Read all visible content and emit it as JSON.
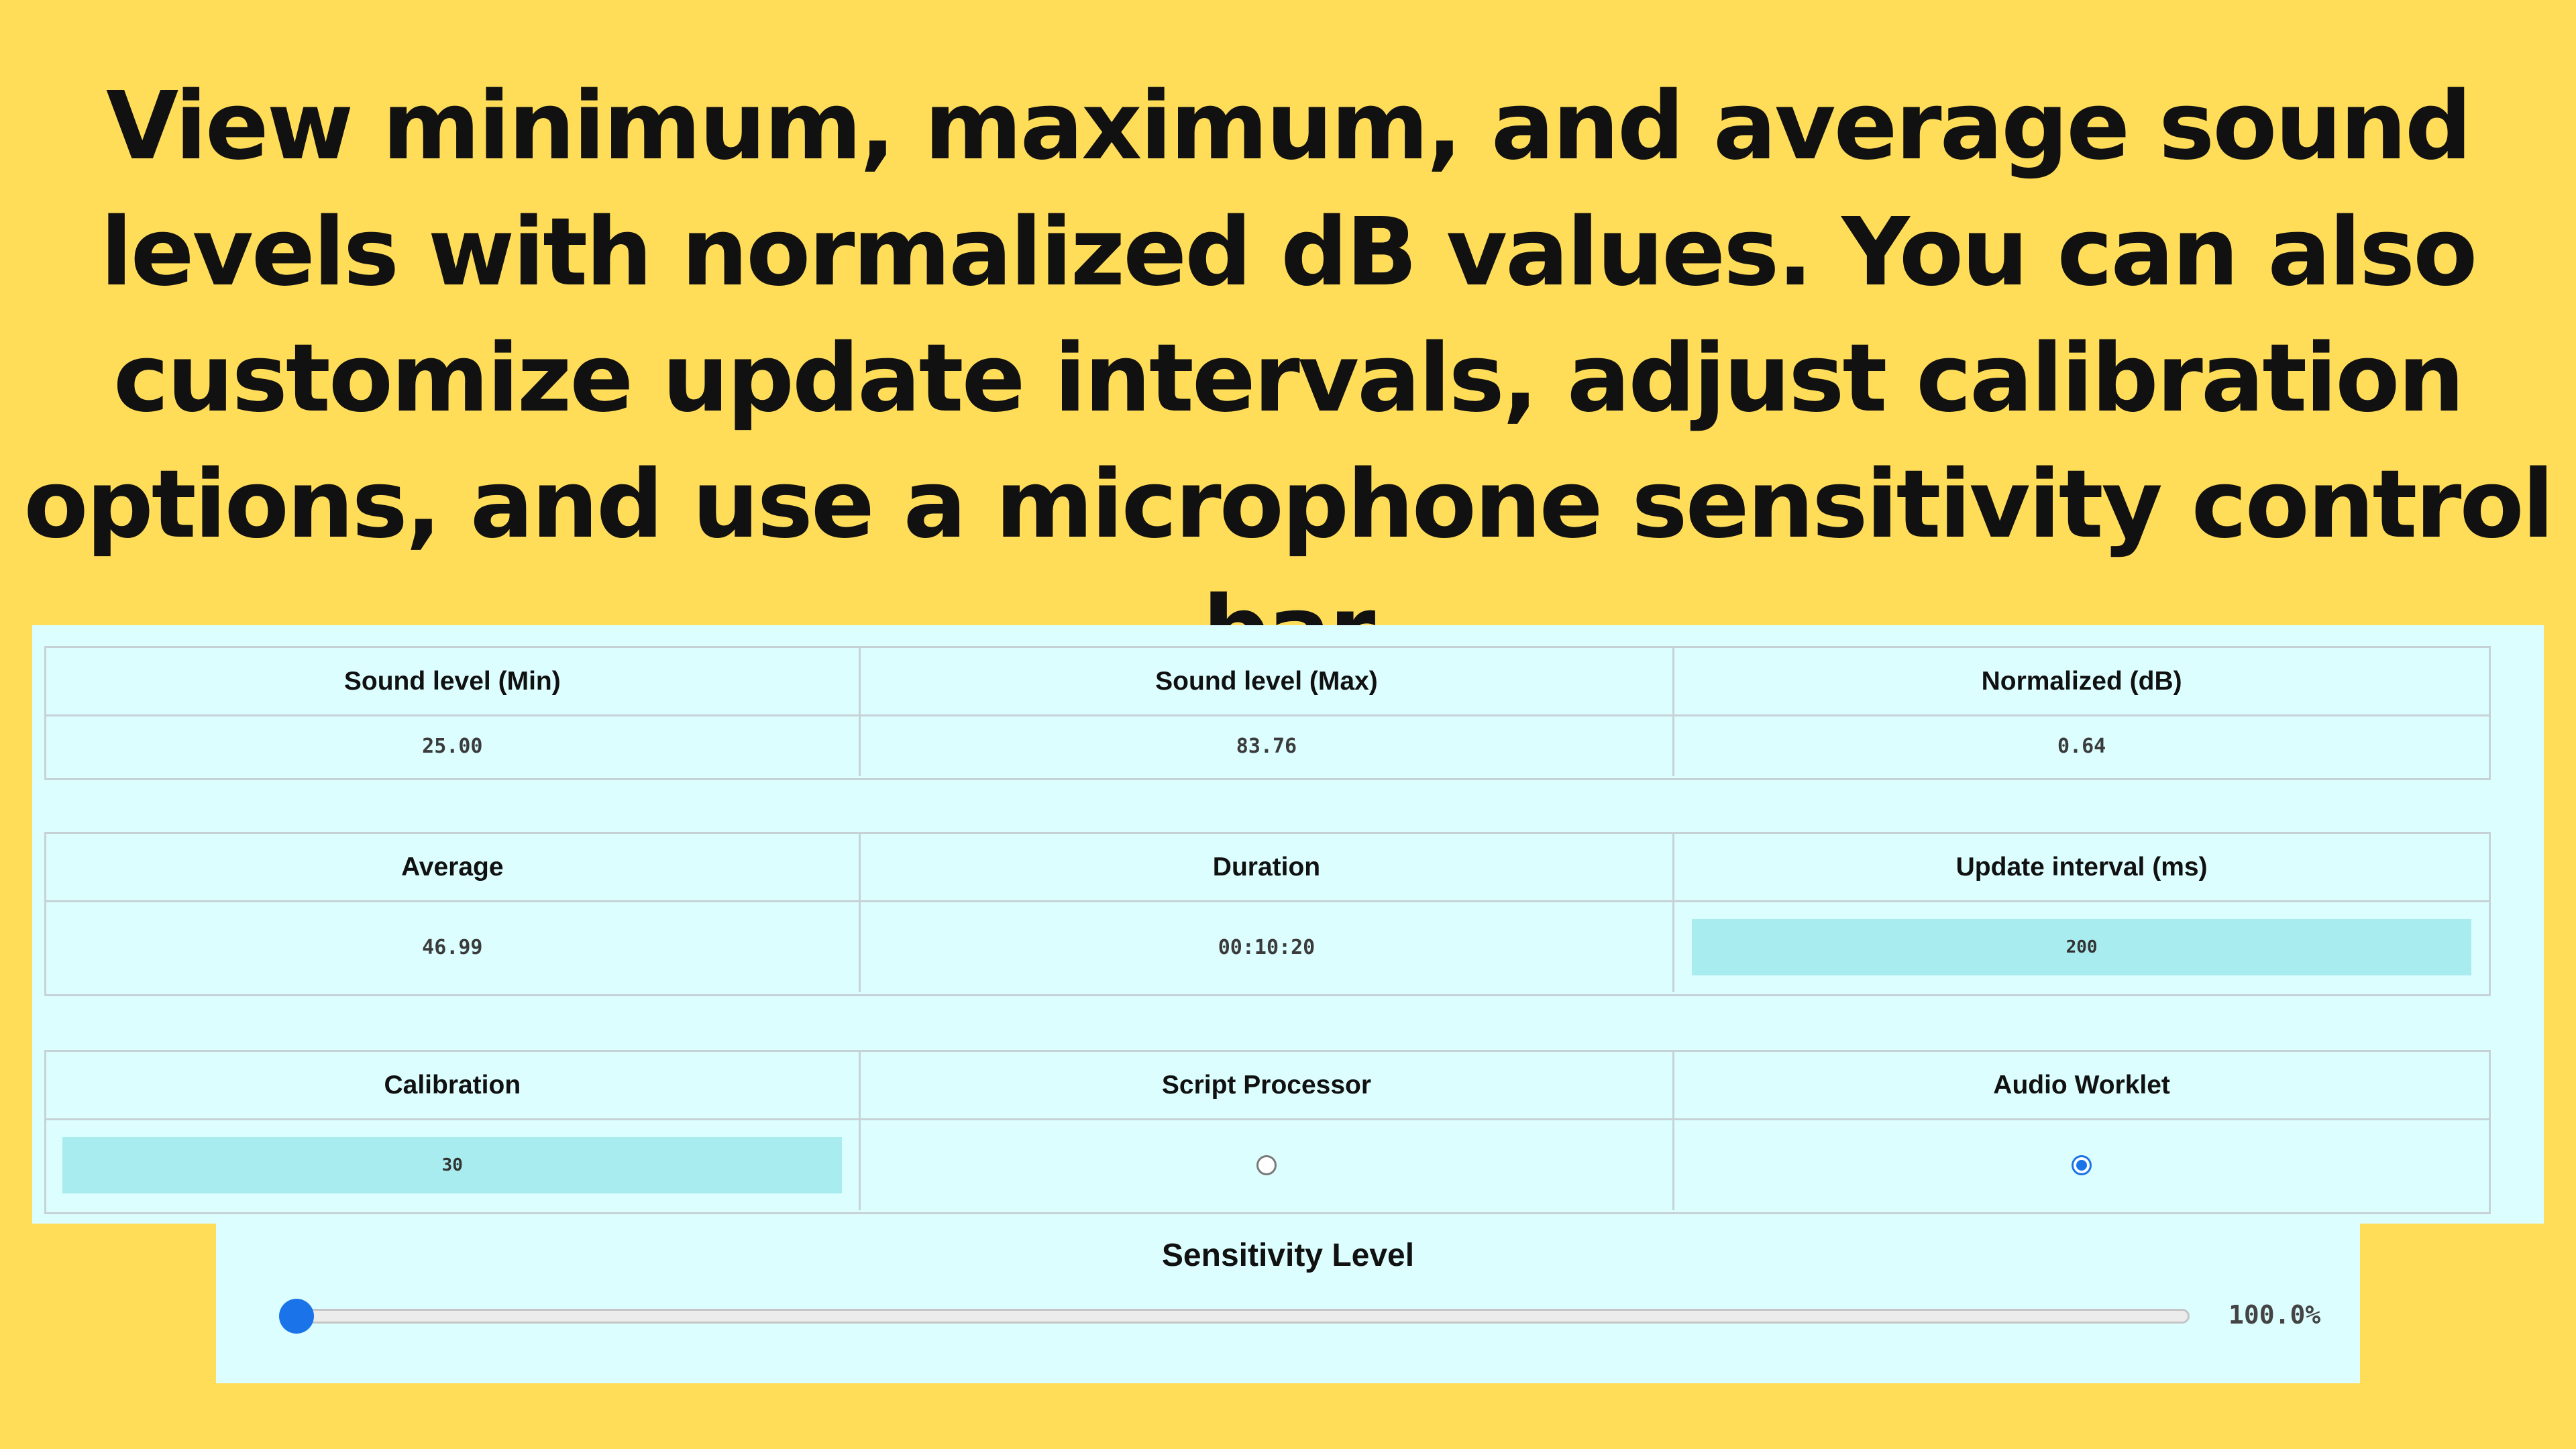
{
  "headline": {
    "lines": [
      "View minimum, maximum, and average sound",
      "levels with normalized dB values. You can also",
      "customize update intervals, adjust calibration",
      "options, and use a microphone sensitivity control bar"
    ]
  },
  "colors": {
    "background": "#ffdd59",
    "panel": "#dcfeff",
    "input_fill": "#a8ecef",
    "accent": "#1a73e8"
  },
  "stats": {
    "row1": {
      "headers": [
        "Sound level (Min)",
        "Sound level (Max)",
        "Normalized (dB)"
      ],
      "values": [
        "25.00",
        "83.76",
        "0.64"
      ]
    },
    "row2": {
      "headers": [
        "Average",
        "Duration",
        "Update interval (ms)"
      ],
      "values": [
        "46.99",
        "00:10:20"
      ],
      "update_interval_value": "200"
    },
    "row3": {
      "headers": [
        "Calibration",
        "Script Processor",
        "Audio Worklet"
      ],
      "calibration_value": "30",
      "script_processor_selected": false,
      "audio_worklet_selected": true
    }
  },
  "sensitivity": {
    "title": "Sensitivity Level",
    "value_label": "100.0%",
    "level": 1.0
  },
  "icons": {
    "slider_thumb": "slider-thumb-icon",
    "radio_unchecked": "radio-unchecked-icon",
    "radio_checked": "radio-checked-icon"
  }
}
